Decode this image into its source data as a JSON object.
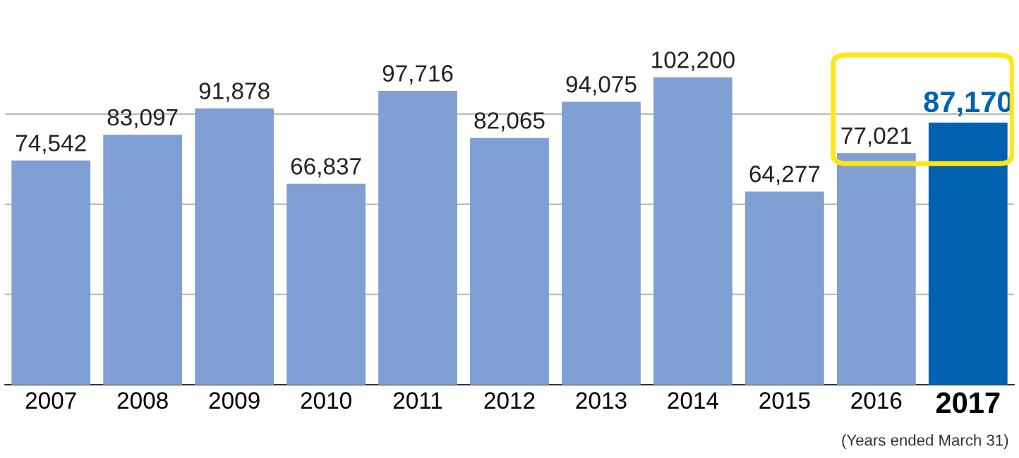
{
  "chart_data": {
    "type": "bar",
    "categories": [
      "2007",
      "2008",
      "2009",
      "2010",
      "2011",
      "2012",
      "2013",
      "2014",
      "2015",
      "2016",
      "2017"
    ],
    "values": [
      74542,
      83097,
      91878,
      66837,
      97716,
      82065,
      94075,
      102200,
      64277,
      77021,
      87170
    ],
    "colors": [
      "#7f9fd5",
      "#7f9fd5",
      "#7f9fd5",
      "#7f9fd5",
      "#7f9fd5",
      "#7f9fd5",
      "#7f9fd5",
      "#7f9fd5",
      "#7f9fd5",
      "#7f9fd5",
      "#0062b1"
    ],
    "value_labels": [
      "74,542",
      "83,097",
      "91,878",
      "66,837",
      "97,716",
      "82,065",
      "94,075",
      "102,200",
      "64,277",
      "77,021",
      "87,170"
    ],
    "ref_lines": [
      {
        "axis": "y",
        "value": 30000,
        "color": "#bbbbbb"
      },
      {
        "axis": "y",
        "value": 60000,
        "color": "#bbbbbb"
      },
      {
        "axis": "y",
        "value": 90000,
        "color": "#bbbbbb"
      }
    ],
    "tick_labels": "x",
    "annotations": [
      "(Years ended March 31)"
    ]
  }
}
